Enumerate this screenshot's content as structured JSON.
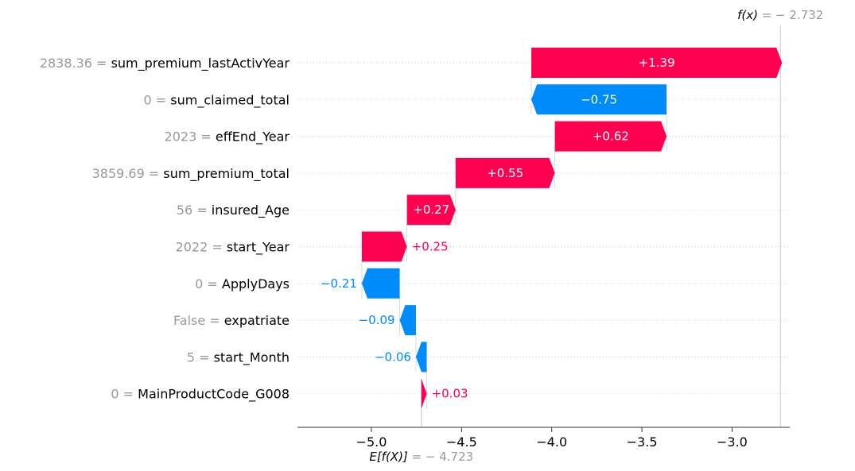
{
  "chart_data": {
    "type": "waterfall",
    "base_value": -4.723,
    "output_value": -2.732,
    "base_label": {
      "text": "E[f(X)]",
      "value_text": "= − 4.723"
    },
    "output_label": {
      "text": "f(x)",
      "value_text": "= − 2.732"
    },
    "features": [
      {
        "value": "2838.36",
        "name": "sum_premium_lastActivYear",
        "shap": 1.39,
        "label": "+1.39"
      },
      {
        "value": "0",
        "name": "sum_claimed_total",
        "shap": -0.75,
        "label": "−0.75"
      },
      {
        "value": "2023",
        "name": "effEnd_Year",
        "shap": 0.62,
        "label": "+0.62"
      },
      {
        "value": "3859.69",
        "name": "sum_premium_total",
        "shap": 0.55,
        "label": "+0.55"
      },
      {
        "value": "56",
        "name": "insured_Age",
        "shap": 0.27,
        "label": "+0.27"
      },
      {
        "value": "2022",
        "name": "start_Year",
        "shap": 0.25,
        "label": "+0.25"
      },
      {
        "value": "0",
        "name": "ApplyDays",
        "shap": -0.21,
        "label": "−0.21"
      },
      {
        "value": "False",
        "name": "expatriate",
        "shap": -0.09,
        "label": "−0.09"
      },
      {
        "value": "5",
        "name": "start_Month",
        "shap": -0.06,
        "label": "−0.06"
      },
      {
        "value": "0",
        "name": "MainProductCode_G008",
        "shap": 0.03,
        "label": "+0.03"
      }
    ],
    "xticks": [
      -5.0,
      -4.5,
      -4.0,
      -3.5,
      -3.0
    ],
    "xtick_labels": [
      "−5.0",
      "−4.5",
      "−4.0",
      "−3.5",
      "−3.0"
    ],
    "xlim": [
      -5.41,
      -2.68
    ],
    "colors": {
      "positive": "#ff0051",
      "negative": "#008bfb",
      "value_gray": "#999999",
      "grid": "#cccccc"
    },
    "grid": "dotted horizontal row lines"
  }
}
